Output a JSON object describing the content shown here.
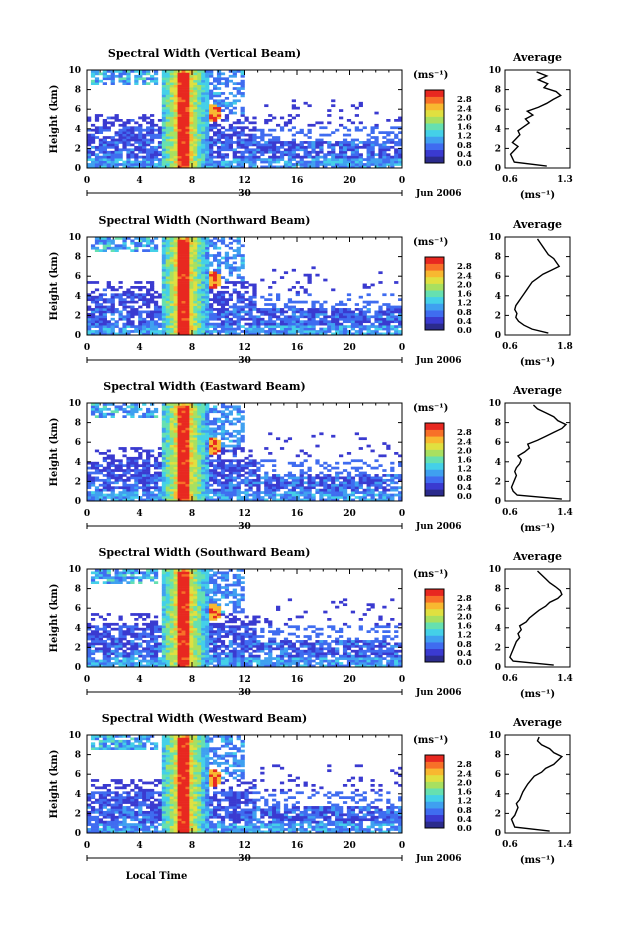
{
  "colors": {
    "scale": [
      "#2b2b8c",
      "#3a3ad0",
      "#3f6cf0",
      "#3fa0f0",
      "#44d0e8",
      "#66e0b0",
      "#a8e060",
      "#e0e040",
      "#f8b830",
      "#f87028",
      "#e82820"
    ],
    "line": "#000000",
    "background": "#ffffff"
  },
  "shared": {
    "date_label": "Jun 2006",
    "day_label": "30",
    "unit_label": "(ms⁻¹)",
    "average_title": "Average",
    "height_label": "Height (km)",
    "x_ticks": [
      "0",
      "4",
      "8",
      "12",
      "16",
      "20",
      "0"
    ],
    "y_ticks": [
      "0",
      "2",
      "4",
      "6",
      "8",
      "10"
    ],
    "colorbar_ticks": [
      "0.0",
      "0.4",
      "0.8",
      "1.2",
      "1.6",
      "2.0",
      "2.4",
      "2.8"
    ],
    "bottom_label": "Local Time"
  },
  "chart_data": [
    {
      "type": "heatmap",
      "title": "Spectral Width (Vertical Beam)",
      "xlabel": "",
      "ylabel": "Height (km)",
      "xlim": [
        0,
        24
      ],
      "ylim": [
        0,
        10
      ],
      "clim": [
        0.0,
        2.8
      ],
      "profile": {
        "title": "Average",
        "xlabel": "(ms⁻¹)",
        "xlim": [
          0.6,
          1.3
        ],
        "xticks": [
          "0.6",
          "1.3"
        ],
        "ylim": [
          0,
          10
        ],
        "height": [
          0.2,
          0.6,
          1.0,
          1.4,
          1.8,
          2.2,
          2.6,
          3.0,
          3.4,
          3.8,
          4.2,
          4.6,
          5.0,
          5.4,
          5.8,
          6.2,
          6.6,
          7.0,
          7.4,
          7.8,
          8.2,
          8.6,
          9.0,
          9.4,
          9.8
        ],
        "value": [
          1.05,
          0.7,
          0.68,
          0.66,
          0.7,
          0.74,
          0.68,
          0.72,
          0.76,
          0.74,
          0.8,
          0.86,
          0.82,
          0.9,
          0.84,
          0.96,
          1.05,
          1.12,
          1.2,
          1.15,
          1.02,
          1.06,
          0.96,
          1.05,
          0.94
        ]
      }
    },
    {
      "type": "heatmap",
      "title": "Spectral Width (Northward Beam)",
      "xlabel": "",
      "ylabel": "Height (km)",
      "xlim": [
        0,
        24
      ],
      "ylim": [
        0,
        10
      ],
      "clim": [
        0.0,
        2.8
      ],
      "profile": {
        "title": "Average",
        "xlabel": "(ms⁻¹)",
        "xlim": [
          0.6,
          1.8
        ],
        "xticks": [
          "0.6",
          "1.8"
        ],
        "ylim": [
          0,
          10
        ],
        "height": [
          0.2,
          0.6,
          1.0,
          1.4,
          1.8,
          2.2,
          2.6,
          3.0,
          3.4,
          3.8,
          4.2,
          4.6,
          5.0,
          5.4,
          5.8,
          6.2,
          6.6,
          7.0,
          7.4,
          7.8,
          8.2,
          8.6,
          9.0,
          9.4,
          9.8
        ],
        "value": [
          1.4,
          1.1,
          0.95,
          0.85,
          0.8,
          0.82,
          0.78,
          0.8,
          0.85,
          0.9,
          0.95,
          1.0,
          1.05,
          1.1,
          1.2,
          1.3,
          1.45,
          1.6,
          1.55,
          1.5,
          1.4,
          1.35,
          1.3,
          1.25,
          1.2
        ]
      }
    },
    {
      "type": "heatmap",
      "title": "Spectral Width (Eastward Beam)",
      "xlabel": "",
      "ylabel": "Height (km)",
      "xlim": [
        0,
        24
      ],
      "ylim": [
        0,
        10
      ],
      "clim": [
        0.0,
        2.8
      ],
      "profile": {
        "title": "Average",
        "xlabel": "(ms⁻¹)",
        "xlim": [
          0.6,
          1.4
        ],
        "xticks": [
          "0.6",
          "1.4"
        ],
        "ylim": [
          0,
          10
        ],
        "height": [
          0.2,
          0.6,
          1.0,
          1.4,
          1.8,
          2.2,
          2.6,
          3.0,
          3.4,
          3.8,
          4.2,
          4.6,
          5.0,
          5.4,
          5.8,
          6.2,
          6.6,
          7.0,
          7.4,
          7.8,
          8.2,
          8.6,
          9.0,
          9.4,
          9.8
        ],
        "value": [
          1.3,
          0.75,
          0.7,
          0.68,
          0.7,
          0.72,
          0.74,
          0.72,
          0.74,
          0.78,
          0.8,
          0.76,
          0.84,
          0.9,
          0.88,
          1.0,
          1.1,
          1.2,
          1.3,
          1.35,
          1.25,
          1.2,
          1.1,
          1.0,
          0.95
        ]
      }
    },
    {
      "type": "heatmap",
      "title": "Spectral Width (Southward Beam)",
      "xlabel": "",
      "ylabel": "Height (km)",
      "xlim": [
        0,
        24
      ],
      "ylim": [
        0,
        10
      ],
      "clim": [
        0.0,
        2.8
      ],
      "profile": {
        "title": "Average",
        "xlabel": "(ms⁻¹)",
        "xlim": [
          0.6,
          1.4
        ],
        "xticks": [
          "0.6",
          "1.4"
        ],
        "ylim": [
          0,
          10
        ],
        "height": [
          0.2,
          0.6,
          1.0,
          1.4,
          1.8,
          2.2,
          2.6,
          3.0,
          3.4,
          3.8,
          4.2,
          4.6,
          5.0,
          5.4,
          5.8,
          6.2,
          6.6,
          7.0,
          7.4,
          7.8,
          8.2,
          8.6,
          9.0,
          9.4,
          9.8
        ],
        "value": [
          1.2,
          0.7,
          0.66,
          0.68,
          0.7,
          0.72,
          0.74,
          0.78,
          0.76,
          0.8,
          0.78,
          0.86,
          0.9,
          0.96,
          1.02,
          1.1,
          1.15,
          1.25,
          1.3,
          1.28,
          1.22,
          1.15,
          1.1,
          1.05,
          1.0
        ]
      }
    },
    {
      "type": "heatmap",
      "title": "Spectral Width (Westward Beam)",
      "xlabel": "Local Time",
      "ylabel": "Height (km)",
      "xlim": [
        0,
        24
      ],
      "ylim": [
        0,
        10
      ],
      "clim": [
        0.0,
        2.8
      ],
      "profile": {
        "title": "Average",
        "xlabel": "(ms⁻¹)",
        "xlim": [
          0.6,
          1.4
        ],
        "xticks": [
          "0.6",
          "1.4"
        ],
        "ylim": [
          0,
          10
        ],
        "height": [
          0.2,
          0.6,
          1.0,
          1.4,
          1.8,
          2.2,
          2.6,
          3.0,
          3.4,
          3.8,
          4.2,
          4.6,
          5.0,
          5.4,
          5.8,
          6.2,
          6.6,
          7.0,
          7.4,
          7.8,
          8.2,
          8.6,
          9.0,
          9.4,
          9.8
        ],
        "value": [
          1.15,
          0.72,
          0.7,
          0.68,
          0.72,
          0.74,
          0.76,
          0.74,
          0.78,
          0.8,
          0.82,
          0.85,
          0.88,
          0.92,
          0.96,
          1.05,
          1.1,
          1.2,
          1.25,
          1.3,
          1.2,
          1.15,
          1.05,
          1.0,
          1.02
        ]
      }
    }
  ]
}
